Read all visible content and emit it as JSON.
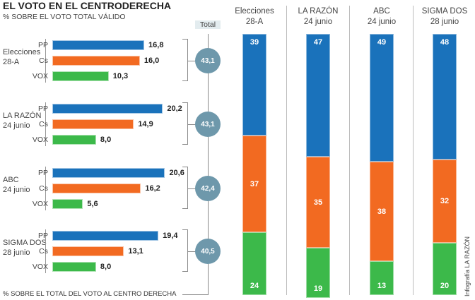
{
  "chart_data": [
    {
      "type": "bar",
      "orientation": "horizontal",
      "title": "EL VOTO EN EL CENTRODERECHA",
      "subtitle": "% SOBRE EL VOTO TOTAL VÁLIDO",
      "total_label": "Total",
      "groups": [
        {
          "label": [
            "Elecciones",
            "28-A"
          ],
          "values": [
            16.8,
            16.0,
            10.3
          ],
          "labels": [
            "16,8",
            "16,0",
            "10,3"
          ],
          "total": "43,1"
        },
        {
          "label": [
            "LA RAZÓN",
            "24 junio"
          ],
          "values": [
            20.2,
            14.9,
            8.0
          ],
          "labels": [
            "20,2",
            "14,9",
            "8,0"
          ],
          "total": "43,1"
        },
        {
          "label": [
            "ABC",
            "24 junio"
          ],
          "values": [
            20.6,
            16.2,
            5.6
          ],
          "labels": [
            "20,6",
            "16,2",
            "5,6"
          ],
          "total": "42,4"
        },
        {
          "label": [
            "SIGMA DOS",
            "28 junio"
          ],
          "values": [
            19.4,
            13.1,
            8.0
          ],
          "labels": [
            "19,4",
            "13,1",
            "8,0"
          ],
          "total": "40,5"
        }
      ],
      "parties": [
        "PP",
        "Cs",
        "VOX"
      ],
      "colors": [
        "#1a72bb",
        "#f26a21",
        "#3cb94a"
      ]
    },
    {
      "type": "bar",
      "stacked": true,
      "xlabel": "% SOBRE EL TOTAL DEL VOTO AL CENTRO DERECHA",
      "categories": [
        [
          "Elecciones",
          "28-A"
        ],
        [
          "LA RAZÓN",
          "24 junio"
        ],
        [
          "ABC",
          "24 junio"
        ],
        [
          "SIGMA DOS",
          "28 junio"
        ]
      ],
      "series": [
        {
          "party": "PP",
          "values": [
            39,
            47,
            49,
            48
          ]
        },
        {
          "party": "Cs",
          "values": [
            37,
            35,
            38,
            32
          ]
        },
        {
          "party": "VOX",
          "values": [
            24,
            19,
            13,
            20
          ]
        }
      ],
      "ylim": [
        0,
        100
      ]
    }
  ],
  "credit": "Infografía LA RAZÓN"
}
